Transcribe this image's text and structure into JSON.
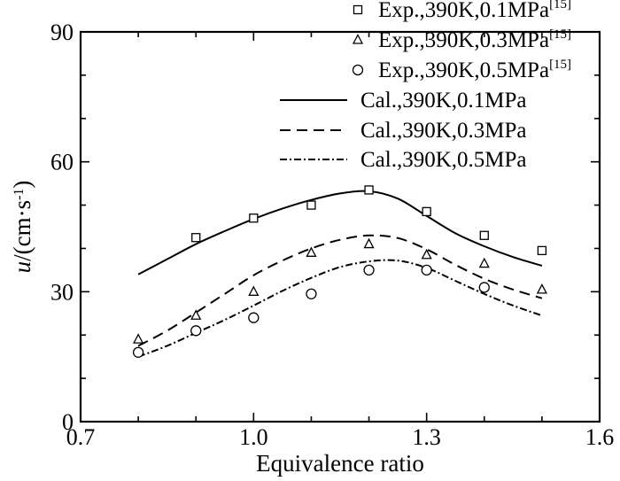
{
  "chart_data": {
    "type": "line",
    "xlabel": "Equivalence ratio",
    "ylabel_italic": "u",
    "ylabel_rest": "/(cm·s",
    "ylabel_sup": "-1",
    "ylabel_close": ")",
    "xlim": [
      0.7,
      1.6
    ],
    "ylim": [
      0,
      90
    ],
    "xticks": [
      "0.7",
      "1.0",
      "1.3",
      "1.6"
    ],
    "yticks": [
      "0",
      "30",
      "60",
      "90"
    ],
    "grid": false,
    "legend_position": "top-right",
    "experimental": [
      {
        "name": "Exp.,390K,0.1MPa",
        "ref": "[15]",
        "marker": "square",
        "x": [
          0.9,
          1.0,
          1.1,
          1.2,
          1.3,
          1.4,
          1.5
        ],
        "y": [
          42.5,
          47,
          50,
          53.5,
          48.5,
          43,
          39.5
        ]
      },
      {
        "name": "Exp.,390K,0.3MPa",
        "ref": "[15]",
        "marker": "triangle",
        "x": [
          0.8,
          0.9,
          1.0,
          1.1,
          1.2,
          1.3,
          1.4,
          1.5
        ],
        "y": [
          19,
          24.5,
          30,
          39,
          41,
          38.5,
          36.5,
          30.5
        ]
      },
      {
        "name": "Exp.,390K,0.5MPa",
        "ref": "[15]",
        "marker": "circle",
        "x": [
          0.8,
          0.9,
          1.0,
          1.1,
          1.2,
          1.3,
          1.4
        ],
        "y": [
          16,
          21,
          24,
          29.5,
          35,
          35,
          31
        ]
      }
    ],
    "calculated": [
      {
        "name": "Cal.,390K,0.1MPa",
        "style": "solid",
        "x": [
          0.8,
          0.85,
          0.9,
          0.95,
          1.0,
          1.05,
          1.1,
          1.15,
          1.2,
          1.25,
          1.3,
          1.35,
          1.4,
          1.45,
          1.5
        ],
        "y": [
          34,
          37.5,
          41,
          44,
          46.8,
          49.2,
          51.2,
          52.7,
          53.2,
          51.5,
          47.5,
          43.5,
          40.5,
          38,
          36
        ]
      },
      {
        "name": "Cal.,390K,0.3MPa",
        "style": "dashed",
        "x": [
          0.8,
          0.85,
          0.9,
          0.95,
          1.0,
          1.05,
          1.1,
          1.15,
          1.2,
          1.25,
          1.3,
          1.35,
          1.4,
          1.45,
          1.5
        ],
        "y": [
          17.5,
          21,
          25.2,
          29.5,
          33.8,
          37.2,
          40,
          42,
          43,
          42.4,
          39.8,
          36.2,
          33,
          30.5,
          28.5
        ]
      },
      {
        "name": "Cal.,390K,0.5MPa",
        "style": "dashdot",
        "x": [
          0.8,
          0.85,
          0.9,
          0.95,
          1.0,
          1.05,
          1.1,
          1.15,
          1.2,
          1.25,
          1.3,
          1.35,
          1.4,
          1.45,
          1.5
        ],
        "y": [
          15,
          17.5,
          20.5,
          23.5,
          26.8,
          30.2,
          33.2,
          35.7,
          37,
          37.2,
          35.5,
          32.5,
          29.5,
          26.8,
          24.5
        ]
      }
    ]
  }
}
